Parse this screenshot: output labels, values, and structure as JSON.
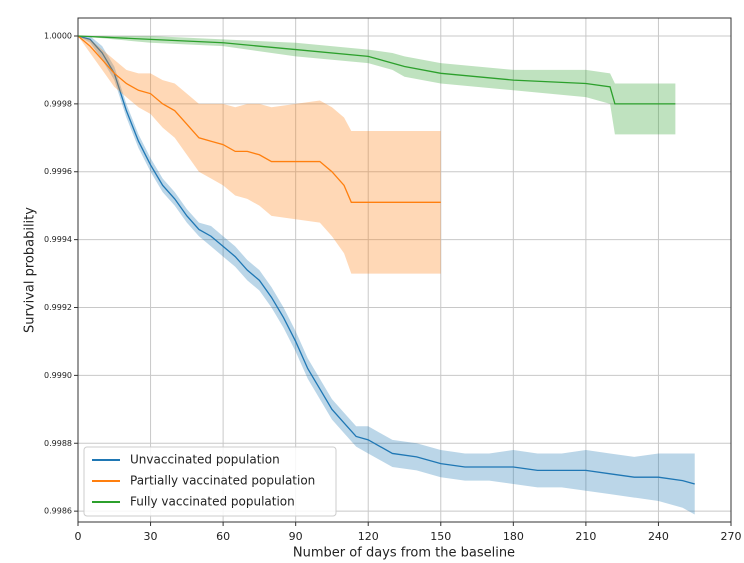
{
  "chart_data": {
    "type": "line",
    "xlabel": "Number of days from the baseline",
    "ylabel": "Survival probability",
    "xlim": [
      0,
      270
    ],
    "xticks": [
      0,
      30,
      60,
      90,
      120,
      150,
      180,
      210,
      240,
      270
    ],
    "ylim": [
      0.998568,
      1.000053
    ],
    "yticks": [
      {
        "value": 0.9986,
        "label": "0.9986"
      },
      {
        "value": 0.9988,
        "label": "0.9988"
      },
      {
        "value": 0.999,
        "label": "0.9990"
      },
      {
        "value": 0.9992,
        "label": "0.9992"
      },
      {
        "value": 0.9994,
        "label": "0.9994"
      },
      {
        "value": 0.9996,
        "label": "0.9996"
      },
      {
        "value": 0.9998,
        "label": "0.9998"
      },
      {
        "value": 1,
        "label": "1.0000"
      }
    ],
    "grid": true,
    "legend": "lower left",
    "series": [
      {
        "name": "Unvaccinated population",
        "color": "#1f77b4",
        "x": [
          0,
          5,
          10,
          15,
          20,
          25,
          30,
          35,
          40,
          45,
          50,
          55,
          60,
          65,
          70,
          75,
          80,
          85,
          90,
          95,
          100,
          105,
          110,
          115,
          120,
          125,
          130,
          140,
          150,
          160,
          170,
          180,
          190,
          200,
          210,
          220,
          230,
          240,
          250,
          255
        ],
        "values": [
          1.0,
          0.99999,
          0.99995,
          0.99989,
          0.99978,
          0.99969,
          0.99962,
          0.99956,
          0.99952,
          0.99947,
          0.99943,
          0.99941,
          0.99938,
          0.99935,
          0.99931,
          0.99928,
          0.99923,
          0.99917,
          0.9991,
          0.99902,
          0.99896,
          0.9989,
          0.99886,
          0.99882,
          0.99881,
          0.99879,
          0.99877,
          0.99876,
          0.99874,
          0.99873,
          0.99873,
          0.99873,
          0.99872,
          0.99872,
          0.99872,
          0.99871,
          0.9987,
          0.9987,
          0.99869,
          0.99868
        ],
        "lower": [
          1.0,
          0.99998,
          0.99993,
          0.99987,
          0.99976,
          0.99967,
          0.9996,
          0.99954,
          0.9995,
          0.99945,
          0.99941,
          0.99938,
          0.99935,
          0.99932,
          0.99928,
          0.99925,
          0.9992,
          0.99914,
          0.99907,
          0.99899,
          0.99893,
          0.99887,
          0.99883,
          0.99879,
          0.99877,
          0.99875,
          0.99873,
          0.99872,
          0.9987,
          0.99869,
          0.99869,
          0.99868,
          0.99867,
          0.99867,
          0.99866,
          0.99865,
          0.99864,
          0.99863,
          0.99861,
          0.99859
        ],
        "upper": [
          1.0,
          1.0,
          0.99997,
          0.99991,
          0.9998,
          0.99971,
          0.99964,
          0.99958,
          0.99954,
          0.99949,
          0.99945,
          0.99944,
          0.99941,
          0.99938,
          0.99934,
          0.99931,
          0.99926,
          0.9992,
          0.99913,
          0.99905,
          0.99899,
          0.99893,
          0.99889,
          0.99885,
          0.99885,
          0.99883,
          0.99881,
          0.9988,
          0.99878,
          0.99877,
          0.99877,
          0.99878,
          0.99877,
          0.99877,
          0.99878,
          0.99877,
          0.99876,
          0.99877,
          0.99877,
          0.99877
        ]
      },
      {
        "name": "Partially vaccinated population",
        "color": "#ff7f0e",
        "x": [
          0,
          5,
          10,
          15,
          20,
          25,
          30,
          35,
          40,
          45,
          50,
          55,
          60,
          65,
          70,
          75,
          80,
          90,
          100,
          105,
          110,
          113,
          150
        ],
        "values": [
          1.0,
          0.99997,
          0.99993,
          0.99989,
          0.99986,
          0.99984,
          0.99983,
          0.9998,
          0.99978,
          0.99974,
          0.9997,
          0.99969,
          0.99968,
          0.99966,
          0.99966,
          0.99965,
          0.99963,
          0.99963,
          0.99963,
          0.9996,
          0.99956,
          0.99951,
          0.99951
        ],
        "lower": [
          1.0,
          0.99995,
          0.9999,
          0.99985,
          0.99982,
          0.99979,
          0.99977,
          0.99973,
          0.9997,
          0.99965,
          0.9996,
          0.99958,
          0.99956,
          0.99953,
          0.99952,
          0.9995,
          0.99947,
          0.99946,
          0.99945,
          0.99941,
          0.99936,
          0.9993,
          0.9993
        ],
        "upper": [
          1.0,
          0.99999,
          0.99996,
          0.99993,
          0.9999,
          0.99989,
          0.99989,
          0.99987,
          0.99986,
          0.99983,
          0.9998,
          0.9998,
          0.9998,
          0.99979,
          0.9998,
          0.9998,
          0.99979,
          0.9998,
          0.99981,
          0.99979,
          0.99976,
          0.99972,
          0.99972
        ]
      },
      {
        "name": "Fully vaccinated population",
        "color": "#2ca02c",
        "x": [
          0,
          30,
          60,
          90,
          120,
          130,
          135,
          150,
          180,
          210,
          220,
          222,
          247
        ],
        "values": [
          1.0,
          0.99999,
          0.99998,
          0.99996,
          0.99994,
          0.99992,
          0.99991,
          0.99989,
          0.99987,
          0.99986,
          0.99985,
          0.9998,
          0.9998
        ],
        "lower": [
          1.0,
          0.99998,
          0.99997,
          0.99994,
          0.99992,
          0.9999,
          0.99988,
          0.99986,
          0.99984,
          0.99982,
          0.9998,
          0.99971,
          0.99971
        ],
        "upper": [
          1.0,
          1.0,
          0.99999,
          0.99998,
          0.99996,
          0.99995,
          0.99994,
          0.99992,
          0.9999,
          0.9999,
          0.99989,
          0.99986,
          0.99986
        ]
      }
    ]
  }
}
